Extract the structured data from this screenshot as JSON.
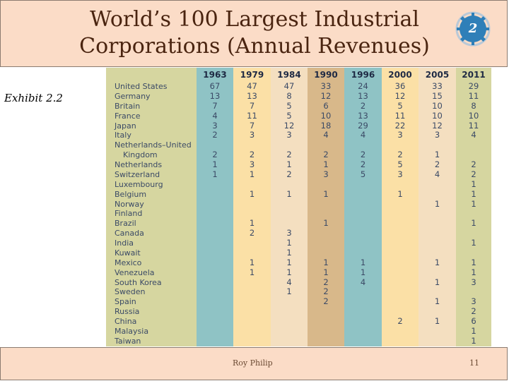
{
  "slide": {
    "title_line1": "World’s 100 Largest Industrial",
    "title_line2": "Corporations (Annual Revenues)",
    "chapter_badge": "2",
    "exhibit_label": "Exhibit 2.2",
    "footer_author": "Roy Philip",
    "footer_page": "11",
    "colors": {
      "title": "#4a2410",
      "band": "#fbdcc7",
      "badge": "#2f7fb8"
    }
  },
  "table": {
    "columns": [
      "",
      "1963",
      "1979",
      "1984",
      "1990",
      "1996",
      "2000",
      "2005",
      "2011"
    ],
    "rows": [
      {
        "country": "United States",
        "values": [
          "67",
          "47",
          "47",
          "33",
          "24",
          "36",
          "33",
          "29"
        ]
      },
      {
        "country": "Germany",
        "values": [
          "13",
          "13",
          "8",
          "12",
          "13",
          "12",
          "15",
          "11"
        ]
      },
      {
        "country": "Britain",
        "values": [
          "7",
          "7",
          "5",
          "6",
          "2",
          "5",
          "10",
          "8"
        ]
      },
      {
        "country": "France",
        "values": [
          "4",
          "11",
          "5",
          "10",
          "13",
          "11",
          "10",
          "10"
        ]
      },
      {
        "country": "Japan",
        "values": [
          "3",
          "7",
          "12",
          "18",
          "29",
          "22",
          "12",
          "11"
        ]
      },
      {
        "country": "Italy",
        "values": [
          "2",
          "3",
          "3",
          "4",
          "4",
          "3",
          "3",
          "4"
        ]
      },
      {
        "country": "Netherlands–United",
        "values": [
          "",
          "",
          "",
          "",
          "",
          "",
          "",
          ""
        ]
      },
      {
        "country": "Kingdom",
        "indent": true,
        "values": [
          "2",
          "2",
          "2",
          "2",
          "2",
          "2",
          "1",
          ""
        ]
      },
      {
        "country": "Netherlands",
        "values": [
          "1",
          "3",
          "1",
          "1",
          "2",
          "5",
          "2",
          "2"
        ]
      },
      {
        "country": "Switzerland",
        "values": [
          "1",
          "1",
          "2",
          "3",
          "5",
          "3",
          "4",
          "2"
        ]
      },
      {
        "country": "Luxembourg",
        "values": [
          "",
          "",
          "",
          "",
          "",
          "",
          "",
          "1"
        ]
      },
      {
        "country": "Belgium",
        "values": [
          "",
          "1",
          "1",
          "1",
          "",
          "1",
          "",
          "1"
        ]
      },
      {
        "country": "Norway",
        "values": [
          "",
          "",
          "",
          "",
          "",
          "",
          "1",
          "1"
        ]
      },
      {
        "country": "Finland",
        "values": [
          "",
          "",
          "",
          "",
          "",
          "",
          "",
          ""
        ]
      },
      {
        "country": "Brazil",
        "values": [
          "",
          "1",
          "",
          "1",
          "",
          "",
          "",
          "1"
        ]
      },
      {
        "country": "Canada",
        "values": [
          "",
          "2",
          "3",
          "",
          "",
          "",
          "",
          ""
        ]
      },
      {
        "country": "India",
        "values": [
          "",
          "",
          "1",
          "",
          "",
          "",
          "",
          "1"
        ]
      },
      {
        "country": "Kuwait",
        "values": [
          "",
          "",
          "1",
          "",
          "",
          "",
          "",
          ""
        ]
      },
      {
        "country": "Mexico",
        "values": [
          "",
          "1",
          "1",
          "1",
          "1",
          "",
          "1",
          "1"
        ]
      },
      {
        "country": "Venezuela",
        "values": [
          "",
          "1",
          "1",
          "1",
          "1",
          "",
          "",
          "1"
        ]
      },
      {
        "country": "South Korea",
        "values": [
          "",
          "",
          "4",
          "2",
          "4",
          "",
          "1",
          "3"
        ]
      },
      {
        "country": "Sweden",
        "values": [
          "",
          "",
          "1",
          "2",
          "",
          "",
          "",
          ""
        ]
      },
      {
        "country": "Spain",
        "values": [
          "",
          "",
          "",
          "2",
          "",
          "",
          "1",
          "3"
        ]
      },
      {
        "country": "Russia",
        "values": [
          "",
          "",
          "",
          "",
          "",
          "",
          "",
          "2"
        ]
      },
      {
        "country": "China",
        "values": [
          "",
          "",
          "",
          "",
          "",
          "2",
          "1",
          "6"
        ]
      },
      {
        "country": "Malaysia",
        "values": [
          "",
          "",
          "",
          "",
          "",
          "",
          "",
          "1"
        ]
      },
      {
        "country": "Taiwan",
        "values": [
          "",
          "",
          "",
          "",
          "",
          "",
          "",
          "1"
        ]
      }
    ]
  }
}
